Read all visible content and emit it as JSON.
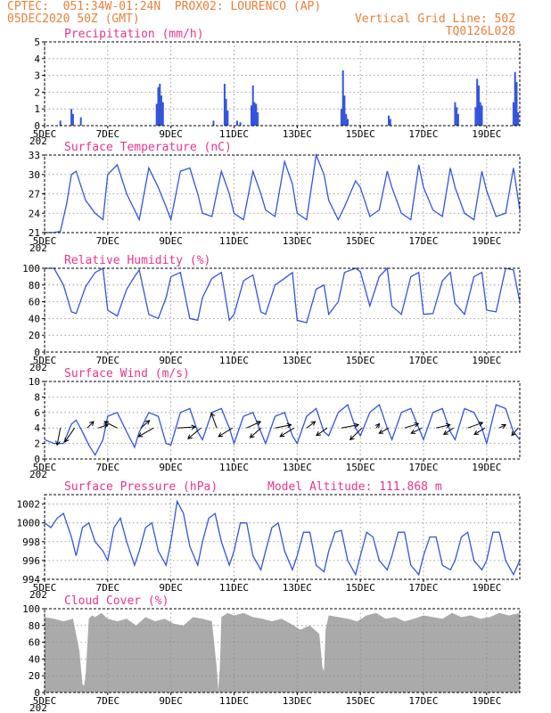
{
  "header": {
    "line1": "CPTEC:  051:34W-01:24N  PROX02: LOURENCO (AP)",
    "line2_left": "05DEC2020 50Z (GMT)",
    "line2_right": "Vertical Grid Line: 50Z",
    "line3_right": "TQ0126L028"
  },
  "x_axis": {
    "tick_labels": [
      "5DEC",
      "7DEC",
      "9DEC",
      "11DEC",
      "13DEC",
      "15DEC",
      "17DEC",
      "19DEC"
    ],
    "start_day": 5,
    "end_day": 20.05,
    "truncated_year_label": "202"
  },
  "colors": {
    "line": "#3355dd",
    "title": "#e6368f",
    "header": "#e8803c",
    "grid": "#888888",
    "cloud": "#aaaaaa"
  },
  "chart_data": [
    {
      "id": "precip",
      "type": "bar",
      "title": "Precipitation (mm/h)",
      "ylim": [
        0,
        5
      ],
      "yticks": [
        0,
        1,
        2,
        3,
        4,
        5
      ],
      "bars": [
        {
          "x": 5.5,
          "y": 0.3
        },
        {
          "x": 5.85,
          "y": 1.0
        },
        {
          "x": 5.9,
          "y": 0.7
        },
        {
          "x": 6.15,
          "y": 0.5
        },
        {
          "x": 8.55,
          "y": 1.3
        },
        {
          "x": 8.6,
          "y": 2.3
        },
        {
          "x": 8.65,
          "y": 2.5
        },
        {
          "x": 8.7,
          "y": 1.8
        },
        {
          "x": 8.75,
          "y": 1.4
        },
        {
          "x": 10.35,
          "y": 0.3
        },
        {
          "x": 10.7,
          "y": 2.5
        },
        {
          "x": 10.75,
          "y": 1.6
        },
        {
          "x": 10.8,
          "y": 0.9
        },
        {
          "x": 11.1,
          "y": 0.3
        },
        {
          "x": 11.2,
          "y": 0.2
        },
        {
          "x": 11.55,
          "y": 1.2
        },
        {
          "x": 11.6,
          "y": 2.4
        },
        {
          "x": 11.65,
          "y": 1.4
        },
        {
          "x": 11.7,
          "y": 1.3
        },
        {
          "x": 11.75,
          "y": 0.8
        },
        {
          "x": 14.4,
          "y": 1.0
        },
        {
          "x": 14.45,
          "y": 3.3
        },
        {
          "x": 14.5,
          "y": 1.8
        },
        {
          "x": 14.55,
          "y": 0.7
        },
        {
          "x": 14.6,
          "y": 0.4
        },
        {
          "x": 15.9,
          "y": 0.6
        },
        {
          "x": 15.95,
          "y": 0.4
        },
        {
          "x": 18.0,
          "y": 1.4
        },
        {
          "x": 18.05,
          "y": 1.1
        },
        {
          "x": 18.1,
          "y": 0.7
        },
        {
          "x": 18.65,
          "y": 1.1
        },
        {
          "x": 18.7,
          "y": 2.8
        },
        {
          "x": 18.75,
          "y": 2.4
        },
        {
          "x": 18.8,
          "y": 1.4
        },
        {
          "x": 18.85,
          "y": 1.2
        },
        {
          "x": 19.85,
          "y": 1.4
        },
        {
          "x": 19.9,
          "y": 3.2
        },
        {
          "x": 19.95,
          "y": 2.6
        },
        {
          "x": 20.0,
          "y": 0.8
        }
      ]
    },
    {
      "id": "temp",
      "type": "line",
      "title": "Surface Temperature (nC)",
      "ylim": [
        21,
        33
      ],
      "yticks": [
        21,
        24,
        27,
        30,
        33
      ],
      "x": [
        5.0,
        5.3,
        5.5,
        5.7,
        5.85,
        6.0,
        6.3,
        6.6,
        6.85,
        7.0,
        7.3,
        7.6,
        7.85,
        8.0,
        8.3,
        8.6,
        8.85,
        9.0,
        9.3,
        9.6,
        9.85,
        10.0,
        10.3,
        10.6,
        10.85,
        11.0,
        11.3,
        11.6,
        11.85,
        12.0,
        12.3,
        12.6,
        12.85,
        13.0,
        13.3,
        13.6,
        13.85,
        14.0,
        14.3,
        14.5,
        14.85,
        15.0,
        15.3,
        15.6,
        15.85,
        16.0,
        16.3,
        16.6,
        16.85,
        17.0,
        17.3,
        17.6,
        17.85,
        18.0,
        18.3,
        18.6,
        18.85,
        19.0,
        19.3,
        19.6,
        19.85,
        20.05
      ],
      "y": [
        21.0,
        21.0,
        21.2,
        25.5,
        30.0,
        30.5,
        26.0,
        24.0,
        23.0,
        30.0,
        31.5,
        27.0,
        24.5,
        23.0,
        31.0,
        28.0,
        25.0,
        23.0,
        30.5,
        31.0,
        27.0,
        24.0,
        23.5,
        30.5,
        27.0,
        24.0,
        23.0,
        30.5,
        27.0,
        24.5,
        23.5,
        32.0,
        28.5,
        24.0,
        23.0,
        33.0,
        30.0,
        26.0,
        23.0,
        25.0,
        29.0,
        28.0,
        23.5,
        24.5,
        30.5,
        28.0,
        24.0,
        23.0,
        31.5,
        28.0,
        24.5,
        23.5,
        31.0,
        28.0,
        24.0,
        23.0,
        30.5,
        27.5,
        23.5,
        24.0,
        31.0,
        24.5
      ]
    },
    {
      "id": "rh",
      "type": "line",
      "title": "Relative Humidity (%)",
      "ylim": [
        0,
        100
      ],
      "yticks": [
        0,
        20,
        40,
        60,
        80,
        100
      ],
      "x": [
        5.0,
        5.3,
        5.6,
        5.85,
        6.0,
        6.3,
        6.6,
        6.85,
        7.0,
        7.3,
        7.6,
        7.85,
        8.0,
        8.3,
        8.6,
        8.85,
        9.0,
        9.3,
        9.6,
        9.85,
        10.0,
        10.3,
        10.6,
        10.85,
        11.0,
        11.3,
        11.6,
        11.85,
        12.0,
        12.3,
        12.6,
        12.85,
        13.0,
        13.3,
        13.6,
        13.85,
        14.0,
        14.3,
        14.5,
        14.85,
        15.0,
        15.3,
        15.6,
        15.85,
        16.0,
        16.3,
        16.6,
        16.85,
        17.0,
        17.3,
        17.6,
        17.85,
        18.0,
        18.3,
        18.6,
        18.85,
        19.0,
        19.3,
        19.6,
        19.85,
        20.05
      ],
      "y": [
        100,
        100,
        80,
        48,
        46,
        78,
        95,
        100,
        50,
        43,
        75,
        90,
        98,
        45,
        40,
        65,
        90,
        95,
        40,
        38,
        65,
        88,
        95,
        38,
        45,
        85,
        92,
        48,
        45,
        80,
        88,
        95,
        38,
        35,
        75,
        80,
        45,
        60,
        95,
        100,
        96,
        55,
        90,
        100,
        55,
        45,
        90,
        95,
        45,
        46,
        85,
        95,
        58,
        45,
        90,
        95,
        50,
        48,
        100,
        98,
        60
      ]
    },
    {
      "id": "wind",
      "type": "line",
      "title": "Surface Wind (m/s)",
      "ylim": [
        0,
        10
      ],
      "yticks": [
        0,
        2,
        4,
        6,
        8,
        10
      ],
      "x": [
        5.0,
        5.3,
        5.6,
        5.85,
        6.0,
        6.2,
        6.4,
        6.6,
        6.85,
        7.0,
        7.3,
        7.6,
        7.85,
        8.0,
        8.3,
        8.6,
        8.85,
        9.0,
        9.3,
        9.6,
        9.85,
        10.0,
        10.3,
        10.6,
        10.85,
        11.0,
        11.3,
        11.6,
        11.85,
        12.0,
        12.3,
        12.6,
        12.85,
        13.0,
        13.3,
        13.6,
        13.85,
        14.0,
        14.3,
        14.6,
        14.85,
        15.0,
        15.3,
        15.6,
        15.85,
        16.0,
        16.3,
        16.6,
        16.85,
        17.0,
        17.3,
        17.6,
        17.85,
        18.0,
        18.3,
        18.6,
        18.85,
        19.0,
        19.3,
        19.6,
        19.85,
        20.05
      ],
      "y": [
        2.5,
        2.0,
        2.0,
        4.5,
        5.0,
        3.5,
        1.8,
        0.5,
        2.5,
        5.5,
        6.0,
        3.5,
        1.5,
        3.5,
        6.0,
        5.5,
        2.0,
        1.8,
        6.0,
        6.5,
        3.5,
        2.5,
        6.0,
        6.5,
        4.0,
        2.0,
        5.5,
        6.0,
        3.5,
        2.0,
        5.5,
        6.0,
        3.0,
        2.0,
        5.5,
        6.5,
        3.5,
        3.0,
        6.0,
        7.0,
        4.0,
        3.0,
        6.0,
        7.0,
        4.0,
        2.5,
        6.0,
        6.5,
        4.0,
        2.5,
        6.0,
        6.5,
        3.5,
        2.5,
        6.5,
        6.0,
        4.0,
        2.0,
        7.0,
        6.5,
        3.5,
        2.5
      ],
      "vectors": [
        {
          "x": 5.5,
          "u": -0.3,
          "v": -1.6
        },
        {
          "x": 5.95,
          "u": -0.9,
          "v": -1.3
        },
        {
          "x": 6.35,
          "u": 0.6,
          "v": 0.6
        },
        {
          "x": 6.7,
          "u": 0.9,
          "v": 0.3
        },
        {
          "x": 7.3,
          "u": -1.2,
          "v": 0.6
        },
        {
          "x": 8.05,
          "u": 0.8,
          "v": 0.7
        },
        {
          "x": 8.45,
          "u": -1.4,
          "v": -0.8
        },
        {
          "x": 9.2,
          "u": 1.7,
          "v": 0.1
        },
        {
          "x": 9.95,
          "u": -1.2,
          "v": -1.0
        },
        {
          "x": 10.45,
          "u": -0.5,
          "v": 1.4
        },
        {
          "x": 10.95,
          "u": -1.3,
          "v": -0.8
        },
        {
          "x": 11.4,
          "u": 1.3,
          "v": 0.6
        },
        {
          "x": 11.85,
          "u": -1.0,
          "v": -0.9
        },
        {
          "x": 12.3,
          "u": 1.5,
          "v": 0.3
        },
        {
          "x": 12.9,
          "u": -1.3,
          "v": -0.8
        },
        {
          "x": 13.3,
          "u": 0.8,
          "v": 0.6
        },
        {
          "x": 13.95,
          "u": -1.0,
          "v": -0.7
        },
        {
          "x": 14.4,
          "u": 1.6,
          "v": 0.3
        },
        {
          "x": 15.05,
          "u": -1.1,
          "v": -1.1
        },
        {
          "x": 15.5,
          "u": 0.3,
          "v": 0.4
        },
        {
          "x": 15.9,
          "u": -0.9,
          "v": -0.5
        },
        {
          "x": 16.4,
          "u": 1.3,
          "v": 0.4
        },
        {
          "x": 16.95,
          "u": -1.0,
          "v": -0.5
        },
        {
          "x": 17.4,
          "u": 1.3,
          "v": 0.3
        },
        {
          "x": 17.95,
          "u": -0.9,
          "v": -0.6
        },
        {
          "x": 18.4,
          "u": 1.4,
          "v": 0.5
        },
        {
          "x": 18.95,
          "u": -1.0,
          "v": -0.6
        },
        {
          "x": 19.4,
          "u": 0.6,
          "v": 0.3
        },
        {
          "x": 20.0,
          "u": -0.6,
          "v": -0.7
        }
      ]
    },
    {
      "id": "pres",
      "type": "line",
      "title": "Surface Pressure (hPa)",
      "annotation": "Model Altitude: 111.868 m",
      "ylim": [
        994,
        1003
      ],
      "yticks": [
        994,
        996,
        998,
        1000,
        1002
      ],
      "x": [
        5.0,
        5.2,
        5.4,
        5.6,
        5.85,
        6.0,
        6.2,
        6.4,
        6.6,
        6.85,
        7.0,
        7.2,
        7.4,
        7.6,
        7.85,
        8.0,
        8.2,
        8.4,
        8.6,
        8.85,
        9.0,
        9.2,
        9.4,
        9.6,
        9.85,
        10.0,
        10.2,
        10.4,
        10.6,
        10.85,
        11.0,
        11.2,
        11.4,
        11.6,
        11.85,
        12.0,
        12.2,
        12.4,
        12.6,
        12.85,
        13.0,
        13.2,
        13.4,
        13.6,
        13.85,
        14.0,
        14.2,
        14.4,
        14.6,
        14.85,
        15.0,
        15.2,
        15.4,
        15.6,
        15.85,
        16.0,
        16.2,
        16.4,
        16.6,
        16.85,
        17.0,
        17.2,
        17.4,
        17.6,
        17.85,
        18.0,
        18.2,
        18.4,
        18.6,
        18.85,
        19.0,
        19.2,
        19.4,
        19.6,
        19.85,
        20.05
      ],
      "y": [
        1000.0,
        999.5,
        1000.5,
        1001.0,
        998.5,
        996.5,
        999.5,
        1000.0,
        998.0,
        997.0,
        996.0,
        999.5,
        1000.5,
        998.0,
        995.5,
        997.0,
        999.5,
        1000.0,
        997.0,
        995.5,
        998.0,
        1002.3,
        1001.0,
        997.5,
        995.5,
        998.0,
        1000.5,
        1001.0,
        998.0,
        995.5,
        997.0,
        1000.0,
        1000.0,
        996.5,
        995.0,
        997.0,
        999.5,
        1000.0,
        997.0,
        995.0,
        996.5,
        999.0,
        999.0,
        995.5,
        994.8,
        997.0,
        999.0,
        999.2,
        996.0,
        994.5,
        996.5,
        999.0,
        998.5,
        996.0,
        995.0,
        996.5,
        999.0,
        999.0,
        995.5,
        994.5,
        996.5,
        998.5,
        998.5,
        995.5,
        995.0,
        996.0,
        998.5,
        999.0,
        996.0,
        995.0,
        996.0,
        999.0,
        999.0,
        996.0,
        994.5,
        996.0
      ]
    },
    {
      "id": "cloud",
      "type": "area",
      "title": "Cloud Cover (%)",
      "ylim": [
        0,
        100
      ],
      "yticks": [
        0,
        20,
        40,
        60,
        80,
        100
      ],
      "x": [
        5.0,
        5.3,
        5.6,
        5.9,
        6.1,
        6.2,
        6.25,
        6.3,
        6.4,
        6.5,
        6.6,
        6.8,
        7.0,
        7.3,
        7.6,
        7.9,
        8.2,
        8.5,
        8.8,
        9.1,
        9.4,
        9.7,
        10.0,
        10.3,
        10.45,
        10.5,
        10.55,
        10.6,
        10.8,
        11.0,
        11.3,
        11.6,
        11.9,
        12.2,
        12.5,
        12.8,
        13.1,
        13.4,
        13.7,
        13.8,
        13.85,
        13.9,
        14.0,
        14.3,
        14.6,
        14.9,
        15.2,
        15.5,
        15.8,
        16.1,
        16.4,
        16.7,
        17.0,
        17.3,
        17.6,
        17.9,
        18.2,
        18.5,
        18.8,
        19.1,
        19.4,
        19.7,
        20.05
      ],
      "y": [
        90,
        88,
        85,
        88,
        50,
        10,
        8,
        20,
        88,
        92,
        90,
        95,
        88,
        85,
        88,
        80,
        90,
        85,
        88,
        82,
        80,
        90,
        88,
        85,
        30,
        3,
        30,
        90,
        95,
        92,
        95,
        90,
        88,
        85,
        88,
        82,
        75,
        80,
        70,
        30,
        25,
        75,
        92,
        90,
        88,
        85,
        92,
        95,
        88,
        90,
        85,
        88,
        92,
        90,
        88,
        95,
        90,
        92,
        88,
        90,
        95,
        92,
        95
      ]
    }
  ]
}
